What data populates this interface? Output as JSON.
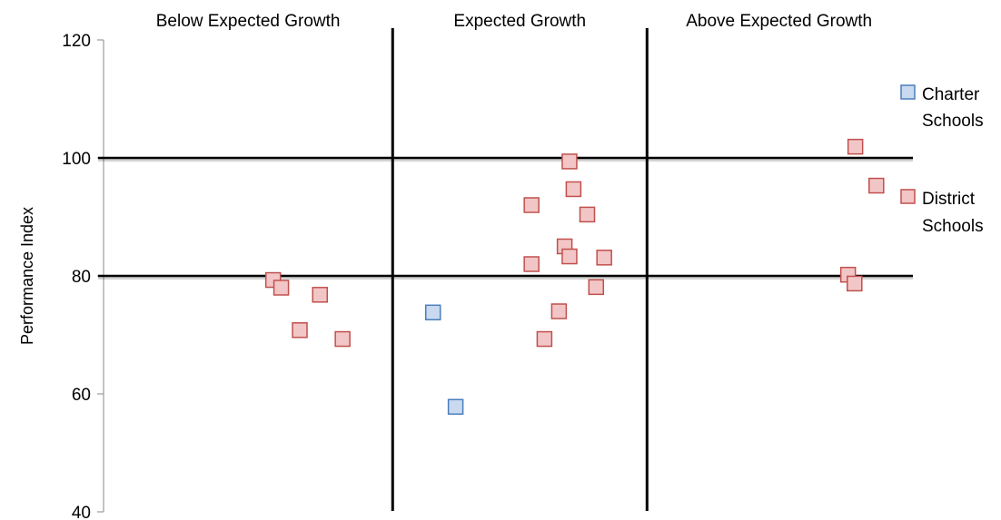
{
  "chart_data": {
    "type": "scatter",
    "title": "",
    "xlabel": "",
    "ylabel": "Performance Index",
    "ylim": [
      40,
      120
    ],
    "yticks": [
      40,
      60,
      80,
      100,
      120
    ],
    "xlim": [
      0,
      100
    ],
    "grid": false,
    "legend_position": "right",
    "zones": [
      {
        "label": "Below Expected Growth"
      },
      {
        "label": "Expected Growth"
      },
      {
        "label": "Above Expected Growth"
      }
    ],
    "zone_boundaries_x": [
      35.8,
      67.3
    ],
    "reference_lines_y": [
      100,
      80
    ],
    "series": [
      {
        "name": "Charter Schools",
        "legend_lines": [
          "Charter",
          "Schools"
        ],
        "fill": "#c9d9ef",
        "stroke": "#4a7ebb",
        "points": [
          {
            "x": 40.8,
            "y": 73.8
          },
          {
            "x": 43.6,
            "y": 57.8
          }
        ]
      },
      {
        "name": "District Schools",
        "legend_lines": [
          "District",
          "Schools"
        ],
        "fill": "#f2c6c6",
        "stroke": "#c0504d",
        "points": [
          {
            "x": 21.0,
            "y": 79.3
          },
          {
            "x": 22.0,
            "y": 78.0
          },
          {
            "x": 24.3,
            "y": 70.8
          },
          {
            "x": 26.8,
            "y": 76.8
          },
          {
            "x": 29.6,
            "y": 69.3
          },
          {
            "x": 53.0,
            "y": 92.0
          },
          {
            "x": 53.0,
            "y": 82.0
          },
          {
            "x": 54.6,
            "y": 69.3
          },
          {
            "x": 56.4,
            "y": 74.0
          },
          {
            "x": 57.1,
            "y": 85.0
          },
          {
            "x": 57.7,
            "y": 99.4
          },
          {
            "x": 57.7,
            "y": 83.3
          },
          {
            "x": 58.2,
            "y": 94.7
          },
          {
            "x": 59.9,
            "y": 90.4
          },
          {
            "x": 61.0,
            "y": 78.1
          },
          {
            "x": 62.0,
            "y": 83.1
          },
          {
            "x": 92.2,
            "y": 80.2
          },
          {
            "x": 93.0,
            "y": 78.7
          },
          {
            "x": 93.1,
            "y": 101.9
          },
          {
            "x": 95.7,
            "y": 95.3
          }
        ]
      }
    ]
  }
}
